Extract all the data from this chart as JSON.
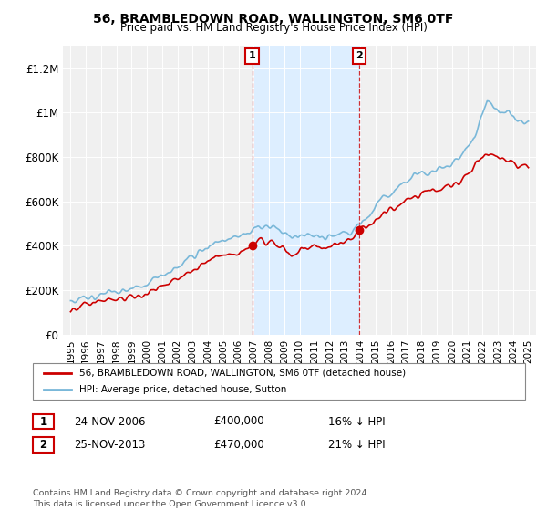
{
  "title": "56, BRAMBLEDOWN ROAD, WALLINGTON, SM6 0TF",
  "subtitle": "Price paid vs. HM Land Registry's House Price Index (HPI)",
  "ylabel_ticks": [
    "£0",
    "£200K",
    "£400K",
    "£600K",
    "£800K",
    "£1M",
    "£1.2M"
  ],
  "ytick_vals": [
    0,
    200000,
    400000,
    600000,
    800000,
    1000000,
    1200000
  ],
  "ylim": [
    0,
    1300000
  ],
  "xlim_start": 1994.5,
  "xlim_end": 2025.5,
  "hpi_color": "#7ab8d9",
  "price_color": "#cc0000",
  "shaded_region": [
    2006.9,
    2014.0
  ],
  "shaded_color": "#ddeeff",
  "marker1_x": 2006.9,
  "marker1_y": 400000,
  "marker2_x": 2013.9,
  "marker2_y": 470000,
  "legend_line1": "56, BRAMBLEDOWN ROAD, WALLINGTON, SM6 0TF (detached house)",
  "legend_line2": "HPI: Average price, detached house, Sutton",
  "table_row1": [
    "1",
    "24-NOV-2006",
    "£400,000",
    "16% ↓ HPI"
  ],
  "table_row2": [
    "2",
    "25-NOV-2013",
    "£470,000",
    "21% ↓ HPI"
  ],
  "footnote": "Contains HM Land Registry data © Crown copyright and database right 2024.\nThis data is licensed under the Open Government Licence v3.0.",
  "background_color": "#ffffff",
  "plot_bg_color": "#f0f0f0"
}
